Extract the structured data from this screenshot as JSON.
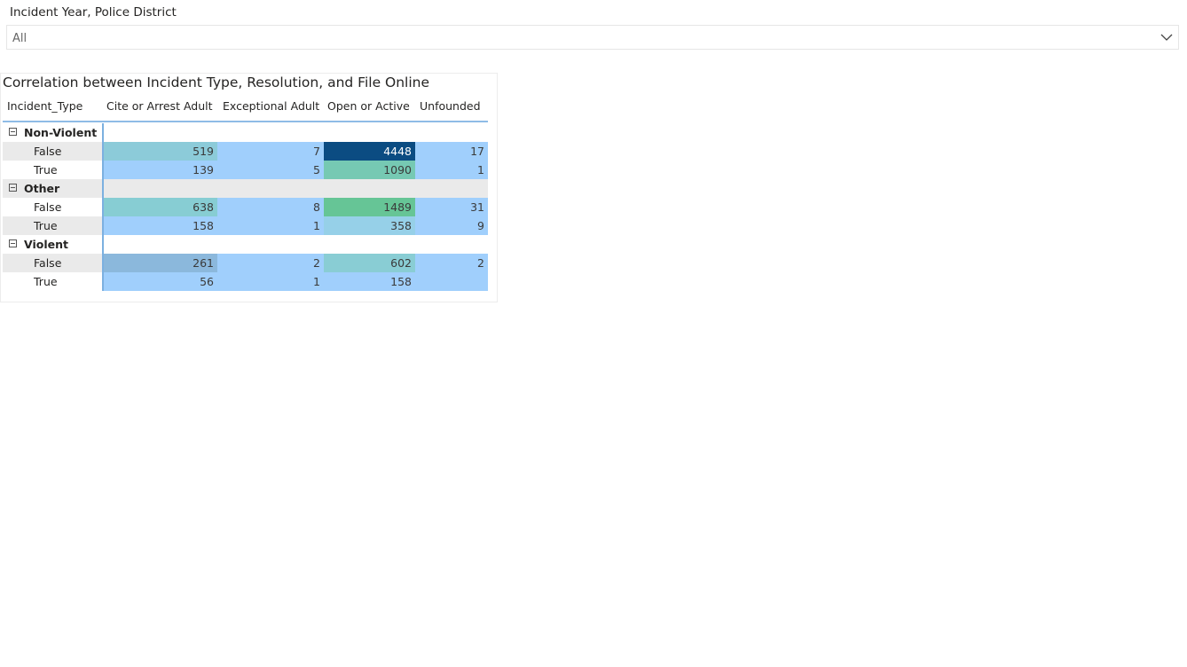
{
  "slicer": {
    "title": "Incident Year, Police District",
    "value": "All",
    "icon": "chevron-down-icon"
  },
  "visual": {
    "title": "Correlation between Incident Type, Resolution, and File Online",
    "row_header": "Incident_Type",
    "columns": [
      "Cite or Arrest Adult",
      "Exceptional Adult",
      "Open or Active",
      "Unfounded"
    ],
    "groups": [
      {
        "label": "Non-Violent",
        "rows": [
          {
            "label": "False",
            "values": [
              "519",
              "7",
              "4448",
              "17"
            ],
            "colors": [
              "#8ccbd9",
              "#a0cffc",
              "#0b4c82",
              "#a0cffc"
            ]
          },
          {
            "label": "True",
            "values": [
              "139",
              "5",
              "1090",
              "1"
            ],
            "colors": [
              "#a0cffc",
              "#a0cffc",
              "#76c9b3",
              "#a0cffc"
            ]
          }
        ]
      },
      {
        "label": "Other",
        "rows": [
          {
            "label": "False",
            "values": [
              "638",
              "8",
              "1489",
              "31"
            ],
            "colors": [
              "#87cdd3",
              "#a0cffc",
              "#66c596",
              "#a0cffc"
            ]
          },
          {
            "label": "True",
            "values": [
              "158",
              "1",
              "358",
              "9"
            ],
            "colors": [
              "#a0cffc",
              "#a0cffc",
              "#96d0e8",
              "#a0cffc"
            ]
          }
        ]
      },
      {
        "label": "Violent",
        "rows": [
          {
            "label": "False",
            "values": [
              "261",
              "2",
              "602",
              "2"
            ],
            "colors": [
              "#8bb8dc",
              "#a0cffc",
              "#89cdd4",
              "#a0cffc"
            ]
          },
          {
            "label": "True",
            "values": [
              "56",
              "1",
              "158",
              ""
            ],
            "colors": [
              "#a0cffc",
              "#a0cffc",
              "#a0cffc",
              "#a0cffc"
            ]
          }
        ]
      }
    ],
    "colors": {
      "group_band": "#eaeaea",
      "leaf_band": "#eaeaea",
      "default_cell": "#a0cffc"
    }
  }
}
